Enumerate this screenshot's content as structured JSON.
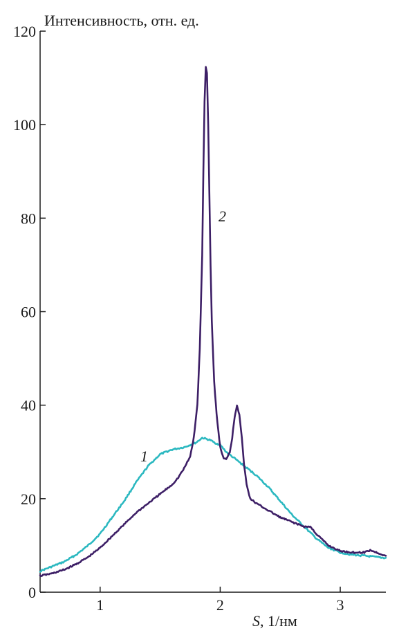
{
  "chart_data": {
    "type": "line",
    "ylabel": "Интенсивность, отн. ед.",
    "xlabel_italic": "S",
    "xlabel_rest": ", 1/нм",
    "xlim": [
      0.5,
      3.38
    ],
    "ylim": [
      0,
      120
    ],
    "xticks": [
      1,
      2,
      3
    ],
    "xtick_labels": [
      "1",
      "2",
      "3"
    ],
    "yticks": [
      0,
      20,
      40,
      60,
      80,
      100,
      120
    ],
    "ytick_labels": [
      "0",
      "20",
      "40",
      "60",
      "80",
      "100",
      "120"
    ],
    "grid": false,
    "series": [
      {
        "label": "1",
        "color": "#2bb8c0",
        "x": [
          0.5,
          0.6,
          0.7,
          0.8,
          0.9,
          1.0,
          1.1,
          1.2,
          1.3,
          1.4,
          1.5,
          1.6,
          1.7,
          1.75,
          1.8,
          1.85,
          1.88,
          1.92,
          1.95,
          2.0,
          2.05,
          2.1,
          2.15,
          2.2,
          2.3,
          2.4,
          2.5,
          2.6,
          2.7,
          2.8,
          2.9,
          3.0,
          3.1,
          3.2,
          3.3,
          3.38
        ],
        "y": [
          4.5,
          5.5,
          6.5,
          8.0,
          10.0,
          12.5,
          16.0,
          19.5,
          23.5,
          27.0,
          29.5,
          30.5,
          31.0,
          31.5,
          32.0,
          33.0,
          32.8,
          32.5,
          32.0,
          31.5,
          30.0,
          29.0,
          28.0,
          27.0,
          25.0,
          22.5,
          19.5,
          16.5,
          14.0,
          11.5,
          9.5,
          8.5,
          8.0,
          7.8,
          7.5,
          7.3
        ]
      },
      {
        "label": "2",
        "color": "#3d1f66",
        "x": [
          0.5,
          0.6,
          0.7,
          0.8,
          0.9,
          1.0,
          1.1,
          1.2,
          1.3,
          1.4,
          1.5,
          1.6,
          1.65,
          1.7,
          1.75,
          1.78,
          1.81,
          1.83,
          1.85,
          1.86,
          1.87,
          1.88,
          1.89,
          1.9,
          1.91,
          1.92,
          1.93,
          1.95,
          1.97,
          2.0,
          2.03,
          2.05,
          2.08,
          2.1,
          2.12,
          2.14,
          2.16,
          2.18,
          2.2,
          2.22,
          2.25,
          2.3,
          2.4,
          2.5,
          2.6,
          2.7,
          2.75,
          2.8,
          2.9,
          3.0,
          3.1,
          3.2,
          3.25,
          3.3,
          3.38
        ],
        "y": [
          3.5,
          4.0,
          4.8,
          6.0,
          7.5,
          9.5,
          12.0,
          14.5,
          17.0,
          19.0,
          21.0,
          23.0,
          24.5,
          26.5,
          29.0,
          33.0,
          40.0,
          52.0,
          72.0,
          90.0,
          105.0,
          112.5,
          111.0,
          100.0,
          85.0,
          70.0,
          58.0,
          45.0,
          38.0,
          31.0,
          28.5,
          28.5,
          30.0,
          33.0,
          37.5,
          40.0,
          38.0,
          33.0,
          27.0,
          23.0,
          20.0,
          19.0,
          17.5,
          16.0,
          15.0,
          14.0,
          14.0,
          12.5,
          10.0,
          8.8,
          8.5,
          8.5,
          9.0,
          8.5,
          7.8
        ]
      }
    ]
  }
}
